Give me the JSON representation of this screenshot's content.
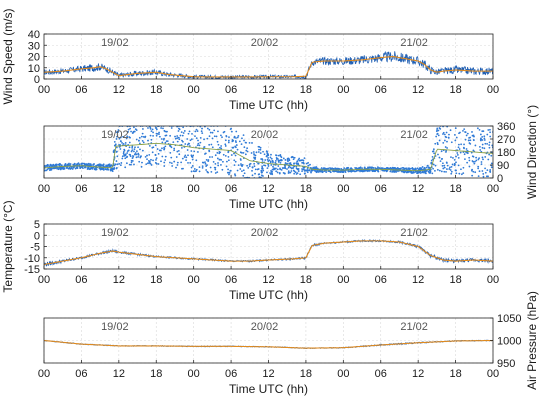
{
  "colors": {
    "raw": "#1f5fb4",
    "mean": "#e08a1e",
    "mean2": "#8aa046",
    "scatter": "#2f7ad6"
  },
  "chart_data": [
    {
      "type": "line",
      "id": "wind-speed",
      "ylabel": "Wind Speed (m/s)",
      "xlabel": "Time UTC (hh)",
      "ylim": [
        0,
        40
      ],
      "yticks": [
        0,
        10,
        20,
        30,
        40
      ],
      "y_axis_side": "left",
      "grid": true,
      "x_tick_labels": [
        "00",
        "06",
        "12",
        "18",
        "00",
        "06",
        "12",
        "18",
        "00",
        "06",
        "12",
        "18",
        "00"
      ],
      "day_labels": [
        "19/02",
        "20/02",
        "21/02"
      ],
      "series": [
        {
          "style": "band",
          "hours": [
            0,
            3,
            6,
            8,
            9,
            10,
            11,
            12,
            15,
            18,
            20,
            24,
            27,
            30,
            33,
            36,
            40,
            42,
            43,
            45,
            48,
            51,
            54,
            56,
            58,
            60,
            61,
            62,
            63,
            64,
            66,
            69,
            72
          ],
          "mean": [
            6,
            7,
            9,
            10,
            11,
            9,
            6,
            3,
            5,
            6,
            4,
            2,
            1.8,
            1.8,
            1.8,
            2,
            2,
            2.5,
            15,
            16,
            16,
            17,
            19,
            20,
            18,
            16,
            13,
            8,
            6,
            7,
            8,
            7,
            7
          ],
          "spread": [
            2.5,
            2.5,
            3,
            3.5,
            3.5,
            3,
            3,
            2,
            2.5,
            2.5,
            2,
            1.5,
            1.5,
            1.5,
            1.5,
            1.5,
            1.5,
            2,
            3,
            3.5,
            3.5,
            4,
            4.5,
            5,
            4.5,
            4,
            4,
            3.5,
            3,
            3,
            3.5,
            3.5,
            3
          ]
        }
      ]
    },
    {
      "type": "scatter",
      "id": "wind-direction",
      "ylabel": "Wind Direction (°)",
      "xlabel": "Time UTC (hh)",
      "ylim": [
        0,
        360
      ],
      "yticks": [
        0,
        90,
        180,
        270,
        360
      ],
      "y_axis_side": "right",
      "grid": true,
      "x_tick_labels": [
        "00",
        "06",
        "12",
        "18",
        "00",
        "06",
        "12",
        "18",
        "00",
        "06",
        "12",
        "18",
        "00"
      ],
      "day_labels": [
        "19/02",
        "20/02",
        "21/02"
      ],
      "series": [
        {
          "style": "scatter-band",
          "hours": [
            0,
            3,
            6,
            9,
            11,
            11.5,
            15,
            18,
            21,
            24,
            27,
            30,
            33,
            36,
            39,
            42,
            43,
            45,
            48,
            51,
            54,
            57,
            60,
            62,
            63,
            66,
            69,
            72
          ],
          "center": [
            70,
            80,
            85,
            75,
            70,
            220,
            230,
            240,
            230,
            210,
            200,
            190,
            120,
            100,
            90,
            80,
            60,
            55,
            55,
            60,
            60,
            55,
            50,
            60,
            200,
            190,
            180,
            170
          ],
          "spread": [
            20,
            20,
            20,
            20,
            25,
            160,
            160,
            150,
            160,
            170,
            170,
            170,
            150,
            80,
            60,
            60,
            20,
            15,
            15,
            15,
            15,
            15,
            20,
            30,
            170,
            170,
            170,
            170
          ]
        }
      ]
    },
    {
      "type": "line",
      "id": "temperature",
      "ylabel": "Temperature (°C)",
      "xlabel": "Time UTC (hh)",
      "ylim": [
        -15,
        5
      ],
      "yticks": [
        -15,
        -10,
        -5,
        0,
        5
      ],
      "y_axis_side": "left",
      "grid": true,
      "x_tick_labels": [
        "00",
        "06",
        "12",
        "18",
        "00",
        "06",
        "12",
        "18",
        "00",
        "06",
        "12",
        "18",
        "00"
      ],
      "day_labels": [
        "19/02",
        "20/02",
        "21/02"
      ],
      "series": [
        {
          "style": "band",
          "hours": [
            0,
            3,
            6,
            9,
            11,
            12,
            15,
            18,
            21,
            24,
            27,
            30,
            33,
            36,
            40,
            42,
            43,
            45,
            48,
            51,
            54,
            57,
            60,
            62,
            64,
            66,
            69,
            72
          ],
          "mean": [
            -13,
            -11.5,
            -10,
            -8,
            -7,
            -7.5,
            -8.5,
            -9.5,
            -10,
            -10.5,
            -11,
            -11.5,
            -11.5,
            -11,
            -10.5,
            -10,
            -4.5,
            -3.5,
            -3,
            -2.5,
            -2.5,
            -3,
            -5,
            -9,
            -11,
            -11.5,
            -11,
            -11.5
          ],
          "spread": [
            1,
            0.7,
            0.5,
            0.6,
            0.6,
            0.5,
            0.5,
            0.4,
            0.4,
            0.4,
            0.4,
            0.4,
            0.4,
            0.4,
            0.4,
            0.6,
            0.6,
            0.4,
            0.4,
            0.4,
            0.4,
            0.5,
            0.6,
            0.8,
            0.8,
            0.8,
            0.8,
            0.8
          ]
        }
      ]
    },
    {
      "type": "line",
      "id": "air-pressure",
      "ylabel": "Air Pressure (hPa)",
      "xlabel": "Time UTC (hh)",
      "ylim": [
        950,
        1050
      ],
      "yticks": [
        950,
        1000,
        1050
      ],
      "y_axis_side": "right",
      "grid": true,
      "x_tick_labels": [
        "00",
        "06",
        "12",
        "18",
        "00",
        "06",
        "12",
        "18",
        "00",
        "06",
        "12",
        "18",
        "00"
      ],
      "day_labels": [
        "19/02",
        "20/02",
        "21/02"
      ],
      "series": [
        {
          "style": "band",
          "hours": [
            0,
            6,
            12,
            18,
            24,
            30,
            36,
            42,
            48,
            54,
            60,
            66,
            72
          ],
          "mean": [
            1000,
            992,
            988,
            988,
            987,
            987,
            986,
            983,
            984,
            990,
            995,
            999,
            1000
          ],
          "spread": [
            1,
            1,
            1,
            1,
            1,
            1,
            1,
            1,
            1,
            1.5,
            1.5,
            1.2,
            1
          ]
        }
      ]
    }
  ]
}
